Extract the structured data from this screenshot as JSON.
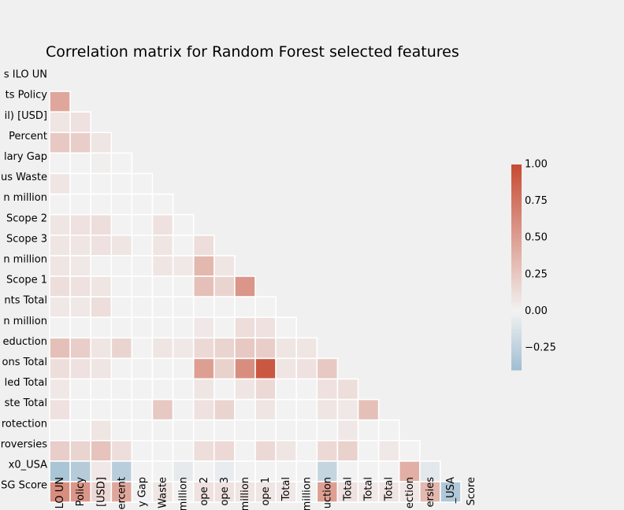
{
  "chart_data": {
    "type": "heatmap",
    "title": "Correlation matrix for Random Forest selected features",
    "row_labels": [
      "s ILO UN",
      "ts Policy",
      "il) [USD]",
      "Percent",
      "lary Gap",
      "us Waste",
      "n million",
      "Scope 2",
      "Scope 3",
      "n million",
      "Scope 1",
      "nts Total",
      "n million",
      "eduction",
      "ons Total",
      "led Total",
      "ste Total",
      "rotection",
      "roversies",
      "x0_USA",
      "SG Score"
    ],
    "col_labels": [
      "LO UN",
      "Policy",
      "[USD]",
      "ercent",
      "y Gap",
      "Waste",
      "million",
      "ope 2",
      "ope 3",
      "million",
      "ope 1",
      "Total",
      "million",
      "uction",
      "Total",
      "Total",
      "Total",
      "ection",
      "ersies",
      "_USA",
      "Score"
    ],
    "lower_triangle": true,
    "colorbar": {
      "ticks": [
        1.0,
        0.75,
        0.5,
        0.25,
        0.0,
        -0.25
      ],
      "tick_labels": [
        "1.00",
        "0.75",
        "0.50",
        "0.25",
        "0.00",
        "−0.25"
      ],
      "min": -0.4,
      "max": 1.0
    },
    "values": [
      [],
      [
        0.45
      ],
      [
        0.08,
        0.1
      ],
      [
        0.25,
        0.22,
        0.08
      ],
      [
        0.0,
        0.0,
        0.02,
        0.0
      ],
      [
        0.08,
        0.0,
        0.0,
        0.0,
        0.0
      ],
      [
        0.0,
        0.0,
        0.0,
        0.0,
        0.0,
        0.0
      ],
      [
        0.08,
        0.1,
        0.12,
        0.0,
        0.0,
        0.1,
        0.0
      ],
      [
        0.08,
        0.08,
        0.1,
        0.08,
        0.0,
        0.08,
        0.0,
        0.12
      ],
      [
        0.08,
        0.06,
        0.0,
        0.0,
        0.0,
        0.08,
        0.06,
        0.35,
        0.08
      ],
      [
        0.12,
        0.1,
        0.08,
        0.0,
        0.0,
        0.0,
        0.0,
        0.3,
        0.18,
        0.55
      ],
      [
        0.06,
        0.06,
        0.12,
        0.0,
        0.0,
        0.0,
        0.0,
        0.0,
        0.0,
        0.0,
        0.0
      ],
      [
        0.0,
        0.0,
        0.0,
        0.0,
        0.0,
        0.0,
        0.0,
        0.06,
        0.0,
        0.12,
        0.1,
        0.0
      ],
      [
        0.3,
        0.22,
        0.08,
        0.18,
        0.0,
        0.08,
        0.06,
        0.15,
        0.18,
        0.25,
        0.22,
        0.08,
        0.08
      ],
      [
        0.12,
        0.1,
        0.08,
        0.0,
        0.0,
        0.0,
        0.0,
        0.5,
        0.2,
        0.6,
        0.92,
        0.08,
        0.1,
        0.25
      ],
      [
        0.06,
        0.0,
        0.0,
        0.0,
        0.0,
        0.0,
        0.0,
        0.08,
        0.0,
        0.08,
        0.15,
        0.0,
        0.0,
        0.1,
        0.12
      ],
      [
        0.1,
        0.0,
        0.0,
        0.0,
        0.0,
        0.25,
        0.0,
        0.1,
        0.18,
        0.0,
        0.08,
        0.0,
        0.0,
        0.08,
        0.06,
        0.3
      ],
      [
        0.0,
        0.0,
        0.08,
        0.0,
        0.0,
        0.0,
        0.0,
        0.0,
        0.0,
        0.0,
        0.0,
        0.0,
        0.0,
        0.0,
        0.06,
        0.0,
        0.0
      ],
      [
        0.22,
        0.18,
        0.28,
        0.12,
        0.0,
        0.0,
        0.0,
        0.12,
        0.15,
        0.0,
        0.15,
        0.08,
        0.0,
        0.15,
        0.2,
        0.0,
        0.06,
        0.0
      ],
      [
        -0.35,
        -0.3,
        0.06,
        -0.28,
        0.0,
        0.0,
        -0.06,
        0.0,
        -0.05,
        0.0,
        0.0,
        0.0,
        0.0,
        -0.22,
        0.0,
        0.0,
        0.0,
        0.4,
        -0.08
      ],
      [
        0.6,
        0.55,
        0.15,
        0.45,
        0.0,
        0.08,
        0.0,
        0.1,
        0.1,
        0.08,
        0.08,
        0.06,
        0.0,
        0.5,
        0.1,
        0.06,
        0.08,
        0.06,
        0.35,
        -0.32
      ]
    ]
  }
}
